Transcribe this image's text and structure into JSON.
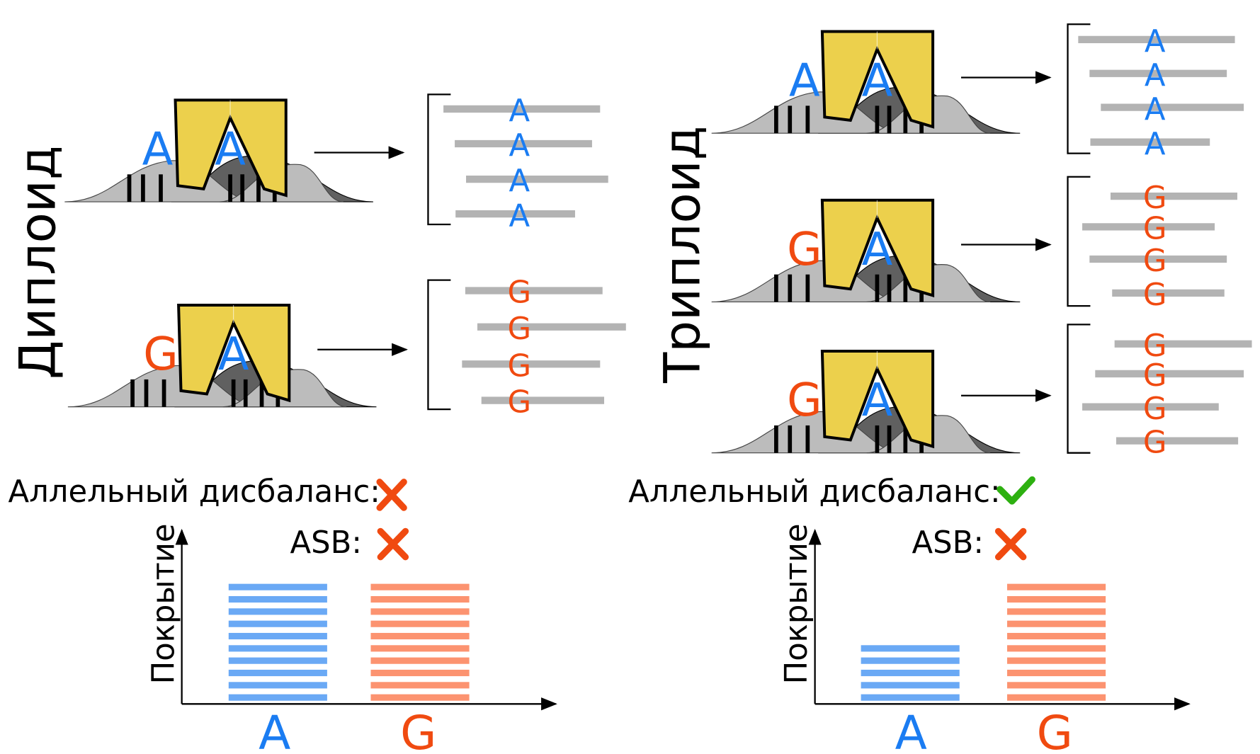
{
  "colors": {
    "allele_a": "#1a7cf2",
    "allele_g": "#f04a10",
    "protein": "#ecd04c",
    "read": "#b3b3b3",
    "bar_a": "#6aa9f5",
    "bar_g": "#fc9370",
    "cross": "#f04a10",
    "check": "#2db010"
  },
  "diploid": {
    "label": "Диплоид",
    "units": [
      {
        "allele": "A",
        "bound": "A",
        "reads": [
          "A",
          "A",
          "A",
          "A"
        ]
      },
      {
        "allele": "G",
        "bound": "A",
        "reads": [
          "G",
          "G",
          "G",
          "G"
        ]
      }
    ],
    "imbalance_label": "Аллельный дисбаланс:",
    "imbalance_icon": "cross-icon",
    "asb_label": "ASB:",
    "asb_icon": "cross-icon",
    "chart_data": {
      "type": "bar",
      "ylabel": "Покрытие",
      "categories": [
        "A",
        "G"
      ],
      "values": [
        10,
        10
      ]
    }
  },
  "triploid": {
    "label": "Триплоид",
    "units": [
      {
        "allele": "A",
        "bound": "A",
        "reads": [
          "A",
          "A",
          "A",
          "A"
        ]
      },
      {
        "allele": "G",
        "bound": "A",
        "reads": [
          "G",
          "G",
          "G",
          "G"
        ]
      },
      {
        "allele": "G",
        "bound": "A",
        "reads": [
          "G",
          "G",
          "G",
          "G"
        ]
      }
    ],
    "imbalance_label": "Аллельный дисбаланс:",
    "imbalance_icon": "check-icon",
    "asb_label": "ASB:",
    "asb_icon": "cross-icon",
    "chart_data": {
      "type": "bar",
      "ylabel": "Покрытие",
      "categories": [
        "A",
        "G"
      ],
      "values": [
        5,
        10
      ]
    }
  }
}
